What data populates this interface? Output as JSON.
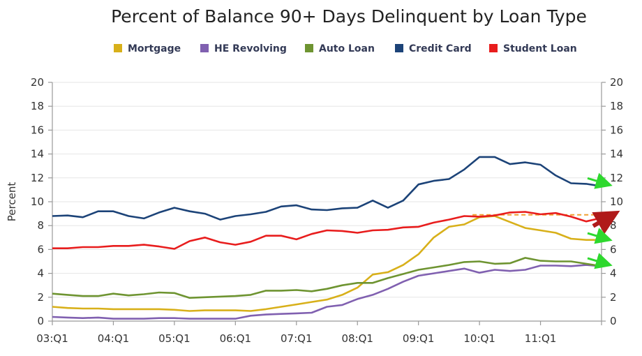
{
  "chart_data": {
    "type": "line",
    "title": "Percent of Balance 90+ Days Delinquent by Loan Type",
    "ylabel": "Percent",
    "xlabel": "",
    "ylim": [
      0,
      20
    ],
    "yticks": [
      0,
      2,
      4,
      6,
      8,
      10,
      12,
      14,
      16,
      18,
      20
    ],
    "right_axis": true,
    "grid": true,
    "legend_position": "top",
    "x": [
      "03:Q1",
      "03:Q2",
      "03:Q3",
      "03:Q4",
      "04:Q1",
      "04:Q2",
      "04:Q3",
      "04:Q4",
      "05:Q1",
      "05:Q2",
      "05:Q3",
      "05:Q4",
      "06:Q1",
      "06:Q2",
      "06:Q3",
      "06:Q4",
      "07:Q1",
      "07:Q2",
      "07:Q3",
      "07:Q4",
      "08:Q1",
      "08:Q2",
      "08:Q3",
      "08:Q4",
      "09:Q1",
      "09:Q2",
      "09:Q3",
      "09:Q4",
      "10:Q1",
      "10:Q2",
      "10:Q3",
      "10:Q4",
      "11:Q1",
      "11:Q2",
      "11:Q3",
      "11:Q4",
      "12:Q1"
    ],
    "x_tick_labels": [
      "03:Q1",
      "04:Q1",
      "05:Q1",
      "06:Q1",
      "07:Q1",
      "08:Q1",
      "09:Q1",
      "10:Q1",
      "11:Q1"
    ],
    "series": [
      {
        "name": "Mortgage",
        "color": "#d8b01a",
        "values": [
          1.2,
          1.1,
          1.05,
          1.05,
          1.0,
          1.0,
          1.0,
          1.0,
          0.95,
          0.85,
          0.9,
          0.9,
          0.9,
          0.85,
          1.0,
          1.2,
          1.4,
          1.6,
          1.8,
          2.2,
          2.8,
          3.9,
          4.1,
          4.7,
          5.6,
          7.0,
          7.9,
          8.1,
          8.7,
          8.8,
          8.3,
          7.8,
          7.6,
          7.4,
          6.9,
          6.8,
          6.8
        ]
      },
      {
        "name": "HE Revolving",
        "color": "#8060b0",
        "values": [
          0.35,
          0.3,
          0.25,
          0.3,
          0.2,
          0.2,
          0.2,
          0.25,
          0.25,
          0.2,
          0.2,
          0.2,
          0.2,
          0.45,
          0.55,
          0.6,
          0.65,
          0.7,
          1.2,
          1.35,
          1.85,
          2.2,
          2.7,
          3.3,
          3.8,
          4.0,
          4.2,
          4.4,
          4.05,
          4.3,
          4.2,
          4.3,
          4.65,
          4.65,
          4.6,
          4.7,
          4.6
        ]
      },
      {
        "name": "Auto Loan",
        "color": "#6e9431",
        "values": [
          2.3,
          2.2,
          2.1,
          2.1,
          2.3,
          2.15,
          2.25,
          2.4,
          2.35,
          1.95,
          2.0,
          2.05,
          2.1,
          2.2,
          2.55,
          2.55,
          2.6,
          2.5,
          2.7,
          3.0,
          3.2,
          3.2,
          3.6,
          3.95,
          4.3,
          4.5,
          4.7,
          4.95,
          5.0,
          4.8,
          4.85,
          5.3,
          5.05,
          5.0,
          5.0,
          4.8,
          4.6
        ]
      },
      {
        "name": "Credit Card",
        "color": "#1c4378",
        "values": [
          8.8,
          8.85,
          8.7,
          9.2,
          9.2,
          8.8,
          8.6,
          9.1,
          9.5,
          9.2,
          9.0,
          8.5,
          8.8,
          8.95,
          9.15,
          9.6,
          9.7,
          9.35,
          9.3,
          9.45,
          9.5,
          10.1,
          9.5,
          10.1,
          11.45,
          11.75,
          11.9,
          12.7,
          13.75,
          13.75,
          13.15,
          13.3,
          13.1,
          12.2,
          11.55,
          11.5,
          11.3
        ]
      },
      {
        "name": "Student Loan",
        "color": "#e81d1d",
        "values": [
          6.1,
          6.1,
          6.2,
          6.2,
          6.3,
          6.3,
          6.4,
          6.25,
          6.05,
          6.7,
          7.0,
          6.6,
          6.4,
          6.65,
          7.15,
          7.15,
          6.85,
          7.3,
          7.6,
          7.55,
          7.4,
          7.6,
          7.65,
          7.85,
          7.9,
          8.25,
          8.5,
          8.8,
          8.75,
          8.85,
          9.1,
          9.15,
          8.95,
          9.05,
          8.75,
          8.35,
          8.65
        ]
      }
    ],
    "annotations": [
      {
        "type": "dashed-line",
        "color": "#f0a030",
        "y": 8.9,
        "x_start": "10:Q1",
        "x_end": "12:Q1"
      },
      {
        "type": "arrow",
        "color": "#2ed82e",
        "target_value": 11.5,
        "series": "Credit Card"
      },
      {
        "type": "arrow",
        "color": "#b01a1a",
        "target_value": 8.9,
        "series": "Student Loan"
      },
      {
        "type": "arrow",
        "color": "#2ed82e",
        "target_value": 6.9,
        "series": "Mortgage"
      },
      {
        "type": "arrow",
        "color": "#2ed82e",
        "target_value": 4.8,
        "series": "Auto Loan"
      }
    ]
  }
}
